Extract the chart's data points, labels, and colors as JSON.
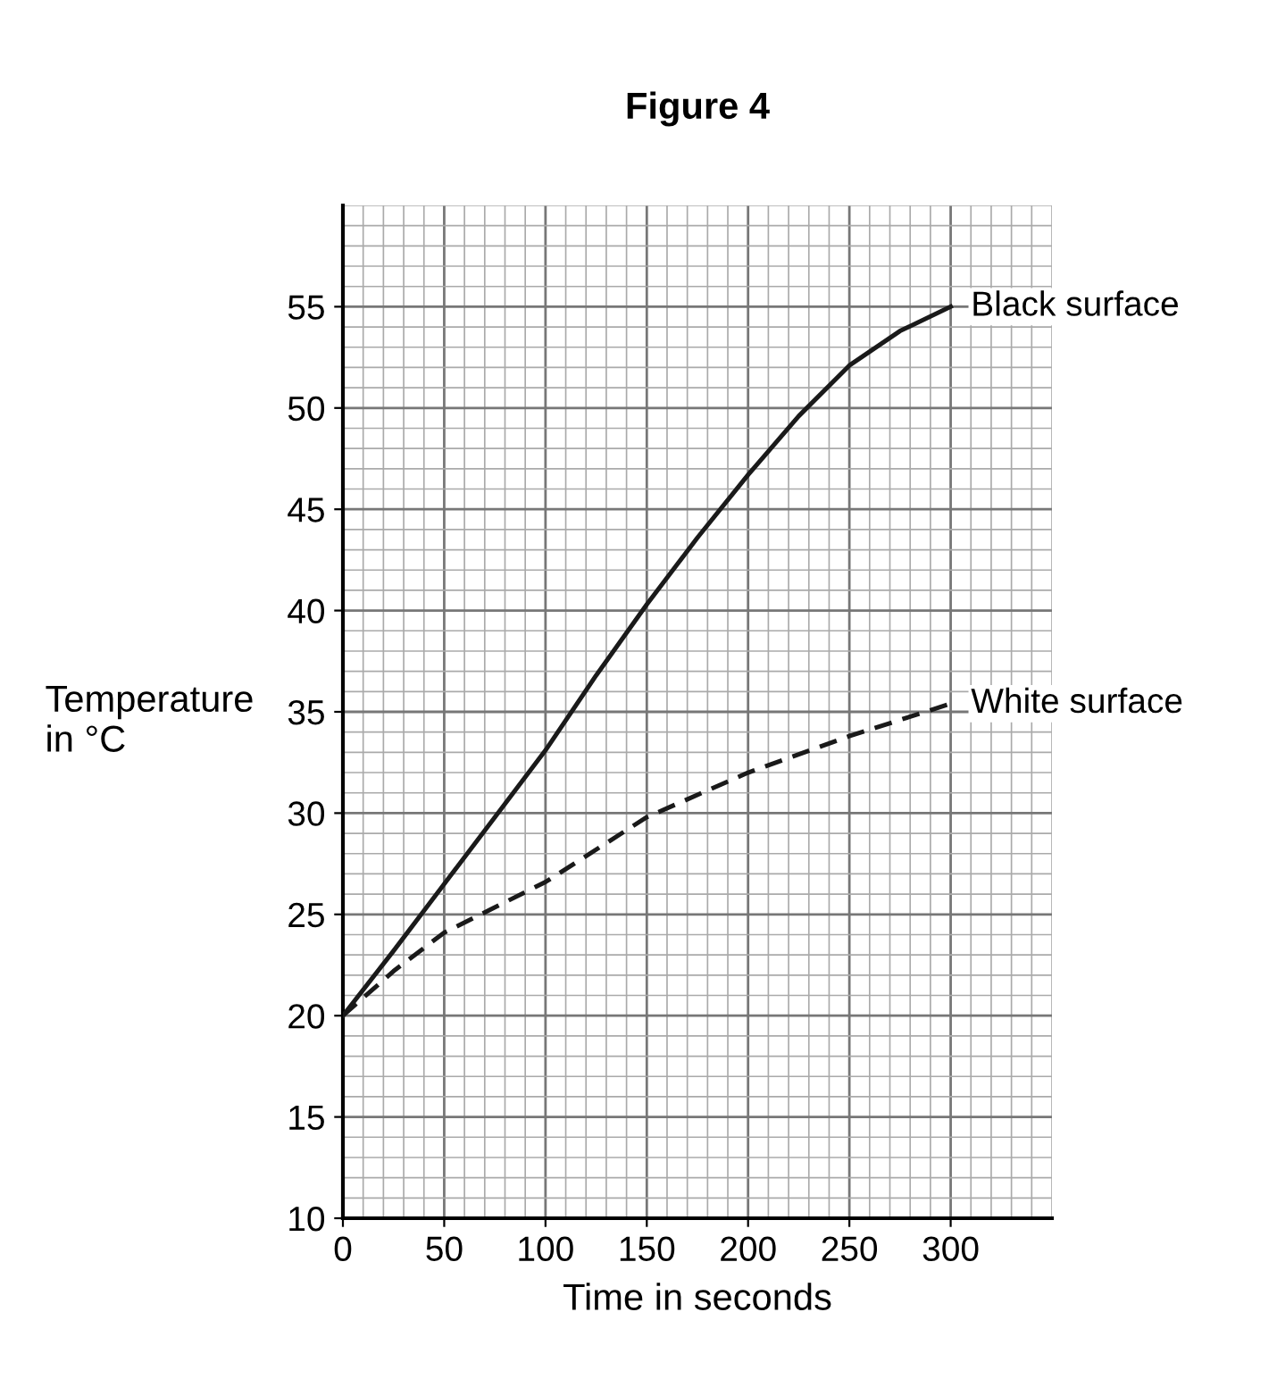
{
  "chart_data": {
    "type": "line",
    "title": "Figure 4",
    "xlabel": "Time in seconds",
    "ylabel": "Temperature\nin °C",
    "xlim": [
      0,
      350
    ],
    "ylim": [
      10,
      60
    ],
    "xticks": [
      0,
      50,
      100,
      150,
      200,
      250,
      300
    ],
    "yticks": [
      10,
      15,
      20,
      25,
      30,
      35,
      40,
      45,
      50,
      55
    ],
    "grid": true,
    "marker": "none",
    "series": [
      {
        "name": "Black surface",
        "color": "#1a1a1a",
        "line_style": "solid",
        "x": [
          0,
          25,
          50,
          75,
          100,
          125,
          150,
          175,
          200,
          225,
          250,
          275,
          300
        ],
        "values": [
          20,
          23.2,
          26.5,
          29.8,
          33.1,
          36.8,
          40.3,
          43.6,
          46.7,
          49.6,
          52.1,
          53.8,
          55
        ]
      },
      {
        "name": "White surface",
        "color": "#1a1a1a",
        "line_style": "dashed",
        "x": [
          0,
          25,
          50,
          100,
          150,
          200,
          250,
          300
        ],
        "values": [
          20,
          22.2,
          24.1,
          26.6,
          29.8,
          32.0,
          33.8,
          35.4
        ]
      }
    ]
  }
}
